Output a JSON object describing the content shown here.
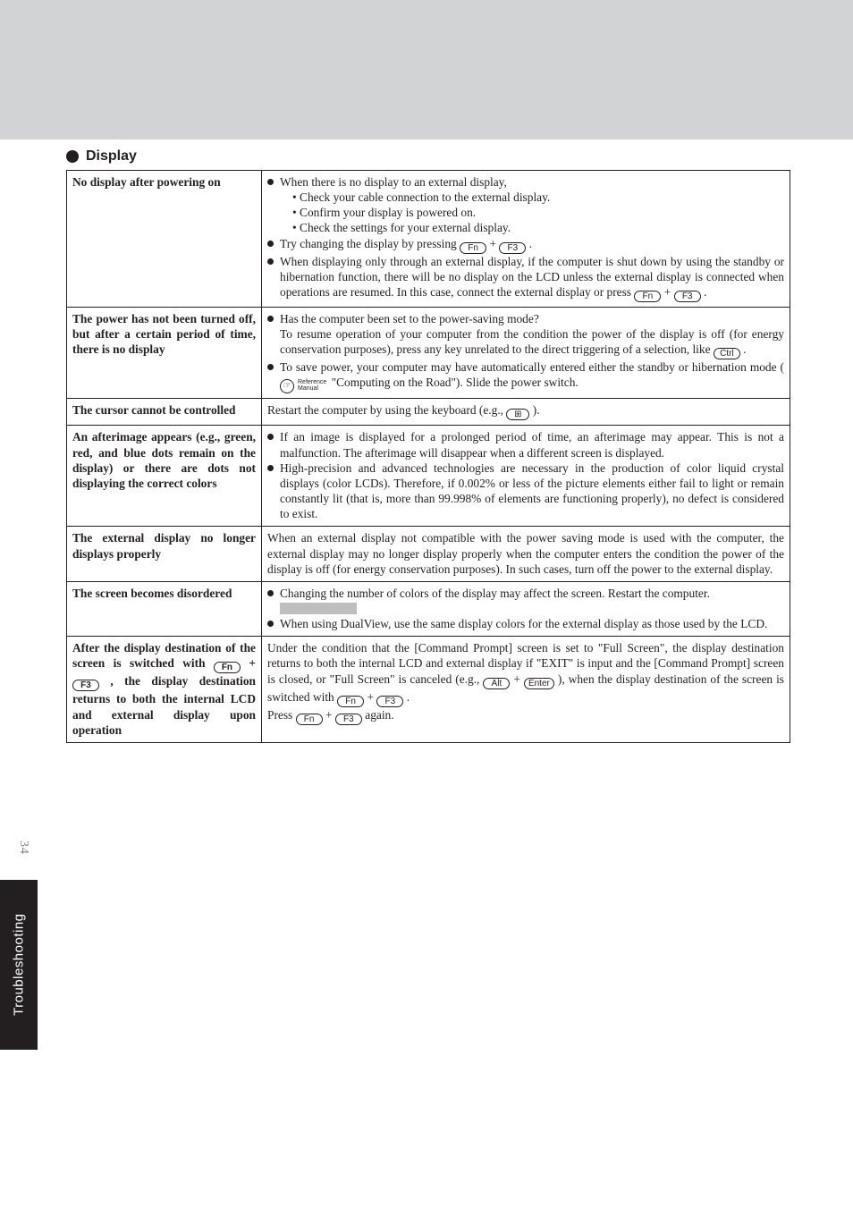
{
  "page": {
    "number": "34",
    "side_tab": "Troubleshooting",
    "section_title": "Display"
  },
  "rows": [
    {
      "issue": "No display after powering on",
      "cells": {
        "b1": "When there is no display to an external display,",
        "s1": "Check your cable connection to the external display.",
        "s2": "Confirm your display is powered on.",
        "s3": "Check the settings for your external display.",
        "b2a": "Try changing the display by pressing ",
        "b2plus": "+",
        "b2end": ".",
        "b3a": "When displaying only through an external display, if the computer is shut down by using the standby or hibernation function, there will be no display on the LCD unless the external display is connected when operations are resumed.  In this case, connect the external display or press ",
        "b3plus": "+",
        "b3end": "."
      }
    },
    {
      "issue": "The power has not been turned off, but after a certain period of time, there is no display",
      "cells": {
        "b1a": "Has the computer been set to the power-saving mode?",
        "b1b": "To resume operation of your computer from the condition the power of the display is off (for energy conservation purposes), press any key unrelated to the direct triggering of a selection, like ",
        "b1end": ".",
        "b2a": "To save power, your computer may have automatically entered either the standby or hibernation mode (",
        "ref1": "Reference",
        "ref2": "Manual",
        "b2b": " \"Computing on the Road\"). Slide the power switch."
      }
    },
    {
      "issue": "The cursor cannot be controlled",
      "cells": {
        "p1a": "Restart the computer by using the keyboard (e.g., ",
        "p1b": ")."
      }
    },
    {
      "issue": "An afterimage appears (e.g., green, red, and blue dots remain on the display) or there are dots not displaying the correct colors",
      "cells": {
        "b1": "If an image is displayed for a prolonged period of time, an afterimage may appear.  This is not a malfunction.  The afterimage will disappear when a different screen is displayed.",
        "b2": "High-precision and advanced technologies are necessary in the production of color liquid crystal displays (color LCDs). Therefore, if 0.002% or less of the picture elements either fail to light or remain constantly lit (that is, more than 99.998% of elements are functioning properly), no defect is considered to exist."
      }
    },
    {
      "issue": "The external display no longer displays properly",
      "cells": {
        "p1": "When an external display not compatible with the power saving mode is used with the computer, the external display may no longer display properly when the computer enters the condition the power of the display is off (for energy conservation purposes).  In such cases, turn off the power to the external display."
      }
    },
    {
      "issue": "The screen becomes disordered",
      "cells": {
        "b1": "Changing the number of colors of the display may affect the screen. Restart the computer.",
        "b2": "When using DualView, use the same display colors for the external display as those used by the LCD."
      }
    },
    {
      "issue_a": "After the display destination of the screen is switched with ",
      "issue_plus": "+",
      "issue_b": ", the display destination returns to both the internal LCD and external display upon operation",
      "cells": {
        "p1a": "Under the condition that the [Command Prompt] screen is set to \"Full Screen\", the display destination returns to both the internal LCD and external display if \"EXIT\" is input and the [Command Prompt] screen is closed, or \"Full Screen\" is canceled (e.g., ",
        "p1plus1": "+",
        "p1b": "), when the display destination of the screen is switched with ",
        "p1plus2": "+",
        "p1c": ".",
        "p2a": "Press ",
        "p2plus": " + ",
        "p2b": " again."
      }
    }
  ]
}
